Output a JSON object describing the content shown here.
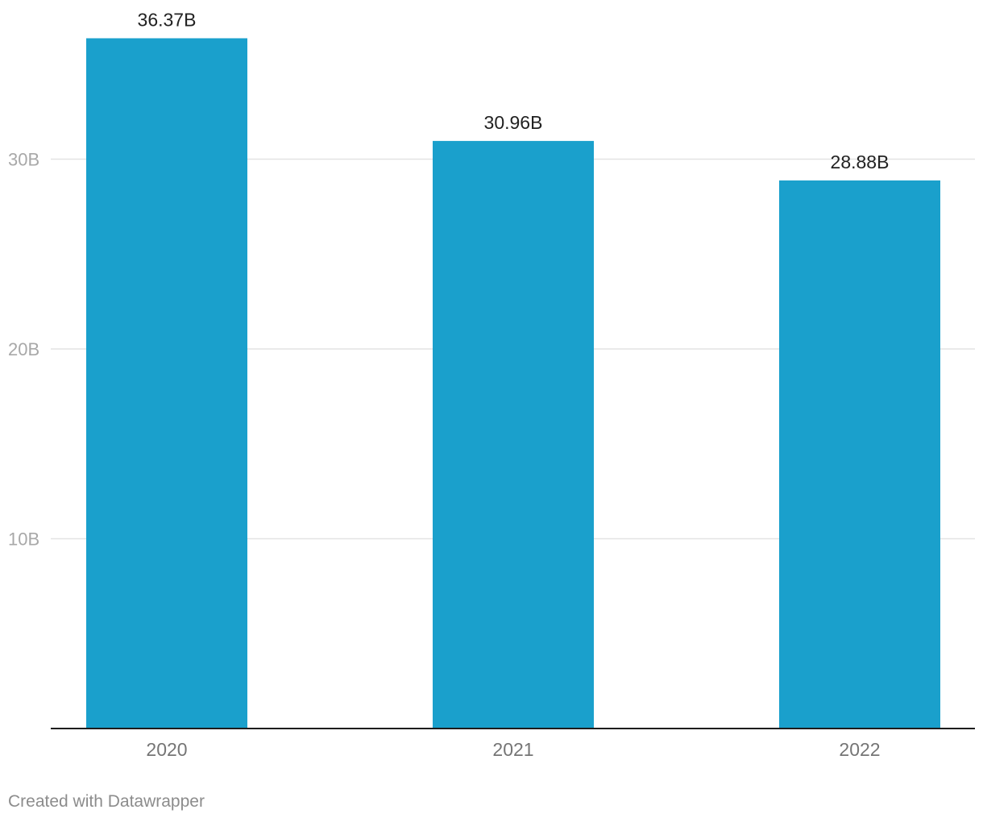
{
  "chart_data": {
    "type": "bar",
    "categories": [
      "2020",
      "2021",
      "2022"
    ],
    "values": [
      36.37,
      30.96,
      28.88
    ],
    "data_labels": [
      "36.37B",
      "30.96B",
      "28.88B"
    ],
    "yticks": [
      10,
      20,
      30
    ],
    "ytick_labels": [
      "10B",
      "20B",
      "30B"
    ],
    "ylim": [
      0,
      40
    ],
    "grid": true,
    "bar_color": "#1aa0cc",
    "title": "",
    "xlabel": "",
    "ylabel": ""
  },
  "footer": {
    "credit": "Created with Datawrapper"
  }
}
